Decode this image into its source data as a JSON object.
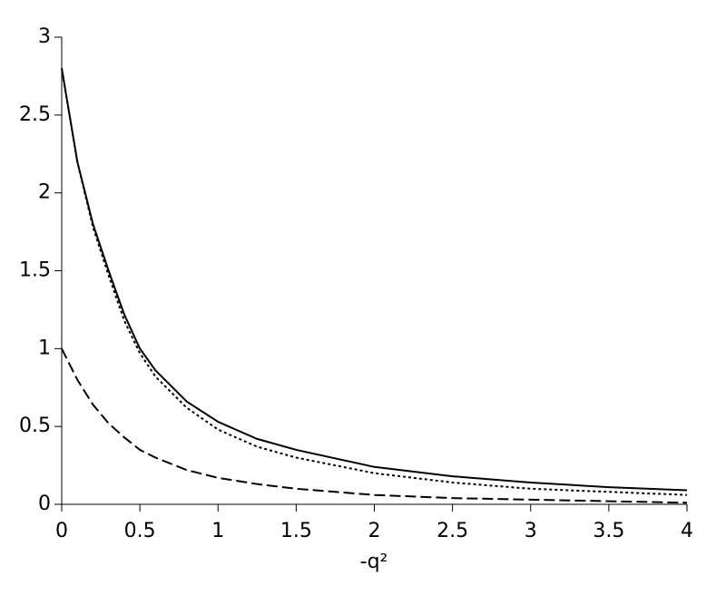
{
  "chart_data": {
    "type": "line",
    "xlabel": "-q²",
    "x": [
      0,
      0.1,
      0.2,
      0.3,
      0.4,
      0.5,
      0.6,
      0.8,
      1,
      1.25,
      1.5,
      2,
      2.5,
      3,
      3.5,
      4
    ],
    "series": [
      {
        "color": "#000000",
        "style": "solid",
        "values": [
          2.8,
          2.2,
          1.8,
          1.5,
          1.22,
          1.0,
          0.86,
          0.66,
          0.53,
          0.42,
          0.35,
          0.24,
          0.18,
          0.14,
          0.11,
          0.09
        ]
      },
      {
        "color": "#000000",
        "style": "dotted",
        "values": [
          2.8,
          2.2,
          1.78,
          1.47,
          1.18,
          0.97,
          0.82,
          0.62,
          0.48,
          0.37,
          0.3,
          0.2,
          0.14,
          0.1,
          0.08,
          0.06
        ]
      },
      {
        "color": "#000000",
        "style": "dashed",
        "values": [
          1.0,
          0.8,
          0.64,
          0.52,
          0.43,
          0.35,
          0.3,
          0.22,
          0.17,
          0.13,
          0.1,
          0.06,
          0.04,
          0.03,
          0.02,
          0.01
        ]
      }
    ],
    "xlim": [
      0,
      4
    ],
    "xticks": [
      0,
      0.5,
      1,
      1.5,
      2,
      2.5,
      3,
      3.5,
      4
    ],
    "ylim": [
      0,
      3
    ],
    "yticks": [
      0,
      0.5,
      1,
      1.5,
      2,
      2.5,
      3
    ],
    "grid": false
  }
}
